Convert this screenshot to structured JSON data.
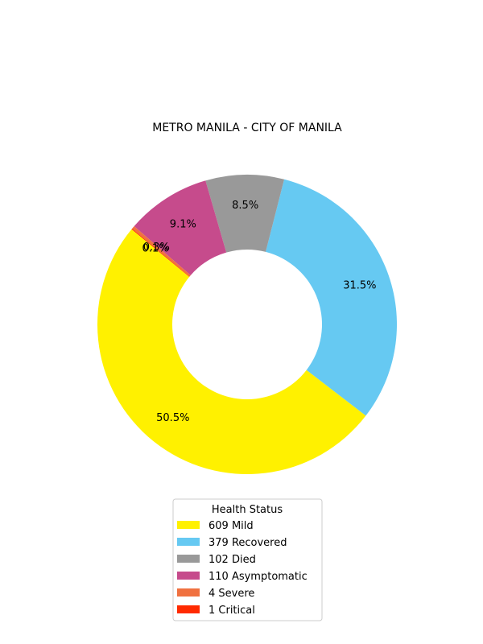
{
  "chart_data": {
    "type": "pie",
    "variant": "donut",
    "title": "METRO MANILA - CITY OF MANILA",
    "legend_title": "Health Status",
    "legend_position": "bottom",
    "slices": [
      {
        "label": "609  Mild",
        "value": 609,
        "pct_label": "50.5%",
        "color": "#fff100"
      },
      {
        "label": "379  Recovered",
        "value": 379,
        "pct_label": "31.5%",
        "color": "#66c9f2"
      },
      {
        "label": "102  Died",
        "value": 102,
        "pct_label": "8.5%",
        "color": "#999999"
      },
      {
        "label": "110  Asymptomatic",
        "value": 110,
        "pct_label": "9.1%",
        "color": "#c64b8c"
      },
      {
        "label": "4  Severe",
        "value": 4,
        "pct_label": "0.3%",
        "color": "#f07140"
      },
      {
        "label": "1  Critical",
        "value": 1,
        "pct_label": "0.1%",
        "color": "#ff2a00"
      }
    ]
  }
}
